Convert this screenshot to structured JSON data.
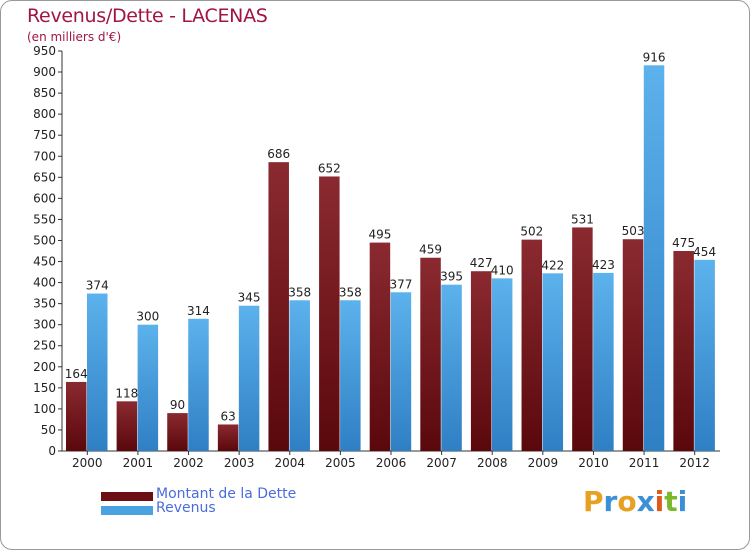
{
  "chart_data": {
    "type": "bar",
    "title": "Revenus/Dette - LACENAS",
    "subtitle": "(en milliers d'€)",
    "xlabel": "",
    "ylabel": "",
    "ylim": [
      0,
      950
    ],
    "y_ticks": [
      0,
      50,
      100,
      150,
      200,
      250,
      300,
      350,
      400,
      450,
      500,
      550,
      600,
      650,
      700,
      750,
      800,
      850,
      900,
      950
    ],
    "grid": false,
    "legend_position": "bottom-left",
    "categories": [
      "2000",
      "2001",
      "2002",
      "2003",
      "2004",
      "2005",
      "2006",
      "2007",
      "2008",
      "2009",
      "2010",
      "2011",
      "2012"
    ],
    "series": [
      {
        "name": "Montant de la Dette",
        "color": "#7a1f24",
        "values": [
          164,
          118,
          90,
          63,
          686,
          652,
          495,
          459,
          427,
          502,
          531,
          503,
          475
        ]
      },
      {
        "name": "Revenus",
        "color": "#4aa3e0",
        "values": [
          374,
          300,
          314,
          345,
          358,
          358,
          377,
          395,
          410,
          422,
          423,
          916,
          454
        ]
      }
    ]
  },
  "legend": {
    "debt_label": "Montant de la Dette",
    "revenue_label": "Revenus",
    "debt_color": "#6b0f14",
    "revenue_color": "#4aa3e0"
  },
  "logo": {
    "letters": [
      "P",
      "r",
      "o",
      "x",
      "i",
      "t",
      "i"
    ],
    "colors": [
      "#e8a020",
      "#3a8fd6",
      "#e8a020",
      "#3a8fd6",
      "#e05a1c",
      "#7ab82c",
      "#3a8fd6"
    ]
  }
}
